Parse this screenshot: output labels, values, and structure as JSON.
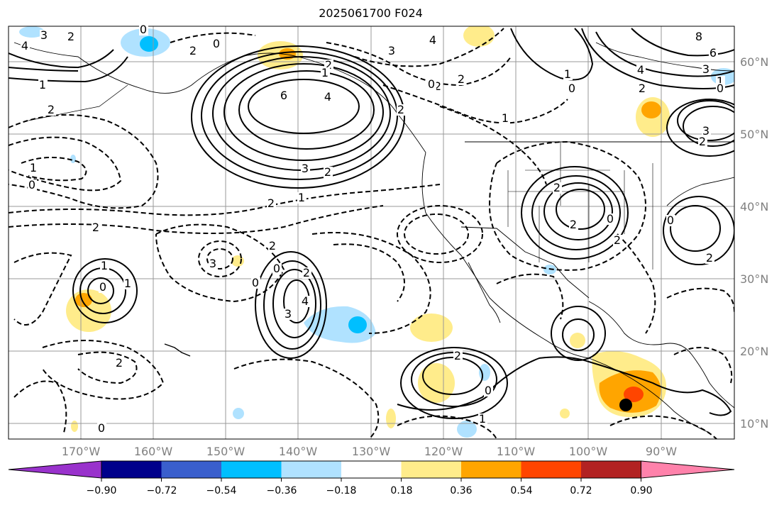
{
  "title": "2025061700 F024",
  "latitude_labels": [
    "60°N",
    "50°N",
    "40°N",
    "30°N",
    "20°N",
    "10°N"
  ],
  "longitude_labels": [
    "170°W",
    "160°W",
    "150°W",
    "140°W",
    "130°W",
    "120°W",
    "110°W",
    "100°W",
    "90°W"
  ],
  "colorbar": {
    "tick_labels": [
      "−0.90",
      "−0.72",
      "−0.54",
      "−0.36",
      "−0.18",
      "0.18",
      "0.36",
      "0.54",
      "0.72",
      "0.90"
    ],
    "colors": [
      "#9932cc",
      "#00008b",
      "#3a5fcd",
      "#00bfff",
      "#b0e2ff",
      "#ffffff",
      "#ffec8b",
      "#ffa500",
      "#ff4500",
      "#b22222",
      "#ff82ab"
    ]
  },
  "contour_labels": [
    "4",
    "3",
    "2",
    "0",
    "2",
    "0",
    "2",
    "1",
    "6",
    "4",
    "3",
    "2",
    "1",
    "2",
    "3",
    "4",
    "2",
    "2",
    "1",
    "2",
    "8",
    "6",
    "4",
    "3",
    "2",
    "1",
    "0",
    "3",
    "2",
    "2",
    "2",
    "0",
    "2",
    "0",
    "2",
    "1",
    "0",
    "3",
    "2",
    "0",
    "2",
    "3",
    "4",
    "0",
    "1",
    "2",
    "0",
    "1",
    "2",
    "2",
    "0",
    "1",
    "0",
    "2",
    "1",
    "0",
    "0",
    "2",
    "1"
  ],
  "marker": {
    "label": "storm-center",
    "color": "#000000"
  }
}
